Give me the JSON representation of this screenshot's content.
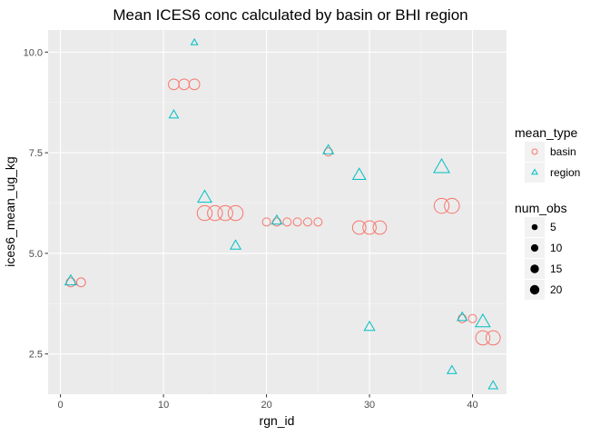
{
  "chart_data": {
    "type": "scatter",
    "title": "Mean ICES6 conc calculated by basin or BHI region",
    "xlabel": "rgn_id",
    "ylabel": "ices6_mean_ug_kg",
    "xlim": [
      -1.2,
      43.3
    ],
    "ylim": [
      1.5,
      10.55
    ],
    "x_ticks": [
      0,
      10,
      20,
      30,
      40
    ],
    "x_tick_labels": [
      "0",
      "10",
      "20",
      "30",
      "40"
    ],
    "y_ticks": [
      2.5,
      5.0,
      7.5,
      10.0
    ],
    "y_tick_labels": [
      "2.5",
      "5.0",
      "7.5",
      "10.0"
    ],
    "background": "#ebebeb",
    "grid": true,
    "legend": {
      "placement": "right",
      "color_title": "mean_type",
      "size_title": "num_obs",
      "size_breaks": [
        5,
        10,
        15,
        20
      ],
      "size_labels": [
        "5",
        "10",
        "15",
        "20"
      ]
    },
    "series": [
      {
        "name": "basin",
        "shape": "circle",
        "color": "#F8766D",
        "points": [
          {
            "x": 1,
            "y": 4.28,
            "n": 5
          },
          {
            "x": 2,
            "y": 4.28,
            "n": 5
          },
          {
            "x": 11,
            "y": 9.2,
            "n": 8
          },
          {
            "x": 12,
            "y": 9.2,
            "n": 8
          },
          {
            "x": 13,
            "y": 9.2,
            "n": 8
          },
          {
            "x": 14,
            "y": 6.0,
            "n": 18
          },
          {
            "x": 15,
            "y": 6.0,
            "n": 18
          },
          {
            "x": 16,
            "y": 6.0,
            "n": 18
          },
          {
            "x": 17,
            "y": 6.0,
            "n": 18
          },
          {
            "x": 20,
            "y": 5.78,
            "n": 4
          },
          {
            "x": 21,
            "y": 5.78,
            "n": 4
          },
          {
            "x": 22,
            "y": 5.78,
            "n": 4
          },
          {
            "x": 23,
            "y": 5.78,
            "n": 4
          },
          {
            "x": 24,
            "y": 5.78,
            "n": 4
          },
          {
            "x": 25,
            "y": 5.78,
            "n": 4
          },
          {
            "x": 26,
            "y": 7.52,
            "n": 4
          },
          {
            "x": 29,
            "y": 5.64,
            "n": 14
          },
          {
            "x": 30,
            "y": 5.64,
            "n": 14
          },
          {
            "x": 31,
            "y": 5.64,
            "n": 14
          },
          {
            "x": 37,
            "y": 6.18,
            "n": 18
          },
          {
            "x": 38,
            "y": 6.18,
            "n": 18
          },
          {
            "x": 39,
            "y": 3.38,
            "n": 4
          },
          {
            "x": 40,
            "y": 3.38,
            "n": 4
          },
          {
            "x": 41,
            "y": 2.9,
            "n": 16
          },
          {
            "x": 42,
            "y": 2.9,
            "n": 16
          }
        ]
      },
      {
        "name": "region",
        "shape": "triangle",
        "color": "#00BFC4",
        "points": [
          {
            "x": 1,
            "y": 4.3,
            "n": 9
          },
          {
            "x": 11,
            "y": 8.43,
            "n": 5
          },
          {
            "x": 13,
            "y": 10.23,
            "n": 2
          },
          {
            "x": 14,
            "y": 6.37,
            "n": 14
          },
          {
            "x": 17,
            "y": 5.18,
            "n": 7
          },
          {
            "x": 21,
            "y": 5.8,
            "n": 7
          },
          {
            "x": 26,
            "y": 7.55,
            "n": 7
          },
          {
            "x": 29,
            "y": 6.93,
            "n": 12
          },
          {
            "x": 30,
            "y": 3.16,
            "n": 7
          },
          {
            "x": 37,
            "y": 7.12,
            "n": 19
          },
          {
            "x": 38,
            "y": 2.08,
            "n": 5
          },
          {
            "x": 39,
            "y": 3.4,
            "n": 6
          },
          {
            "x": 41,
            "y": 3.28,
            "n": 16
          },
          {
            "x": 42,
            "y": 1.7,
            "n": 5
          }
        ]
      }
    ]
  }
}
